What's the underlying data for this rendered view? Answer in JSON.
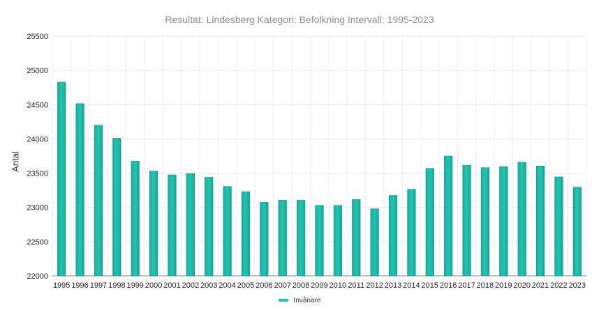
{
  "chart_data": {
    "type": "bar",
    "title": "Resultat: Lindesberg Kategori: Befolkning Intervall: 1995-2023",
    "xlabel": "",
    "ylabel": "Antal",
    "ylim": [
      22000,
      25500
    ],
    "yticks": [
      22000,
      22500,
      23000,
      23500,
      24000,
      24500,
      25000,
      25500
    ],
    "grid": true,
    "legend_position": "bottom-center",
    "bar_color": "#20c5b3",
    "categories": [
      "1995",
      "1996",
      "1997",
      "1998",
      "1999",
      "2000",
      "2001",
      "2002",
      "2003",
      "2004",
      "2005",
      "2006",
      "2007",
      "2008",
      "2009",
      "2010",
      "2011",
      "2012",
      "2013",
      "2014",
      "2015",
      "2016",
      "2017",
      "2018",
      "2019",
      "2020",
      "2021",
      "2022",
      "2023"
    ],
    "series": [
      {
        "name": "Invånare",
        "values": [
          24830,
          24515,
          24200,
          24010,
          23675,
          23530,
          23475,
          23495,
          23440,
          23305,
          23230,
          23075,
          23105,
          23105,
          23030,
          23030,
          23115,
          22980,
          23175,
          23265,
          23570,
          23750,
          23615,
          23580,
          23595,
          23660,
          23605,
          23445,
          23295
        ]
      }
    ]
  }
}
